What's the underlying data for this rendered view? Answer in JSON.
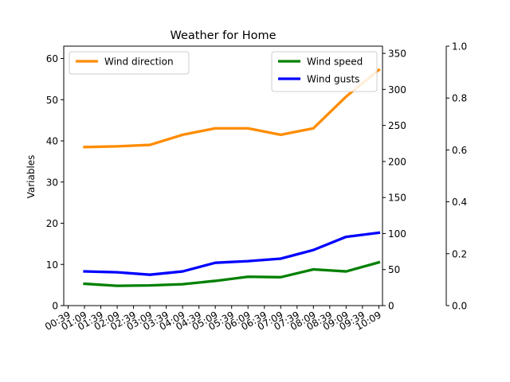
{
  "chart_data": {
    "type": "line",
    "title": "Weather for Home",
    "ylabel_left": "Variables",
    "x": [
      "00:39",
      "01:09",
      "01:39",
      "02:09",
      "02:39",
      "03:09",
      "03:39",
      "04:09",
      "04:39",
      "05:09",
      "05:39",
      "06:09",
      "06:39",
      "07:09",
      "07:39",
      "08:09",
      "08:39",
      "09:09",
      "09:39",
      "10:09"
    ],
    "series": [
      {
        "name": "Wind speed",
        "axis": "left",
        "color": "#008000",
        "x": [
          "01:09",
          "02:09",
          "03:09",
          "04:09",
          "05:09",
          "06:09",
          "07:09",
          "08:09",
          "09:09",
          "10:09"
        ],
        "values": [
          5.3,
          4.8,
          4.9,
          5.2,
          6.0,
          7.0,
          6.9,
          8.8,
          8.3,
          10.5
        ]
      },
      {
        "name": "Wind gusts",
        "axis": "left",
        "color": "#0000ff",
        "x": [
          "01:09",
          "02:09",
          "03:09",
          "04:09",
          "05:09",
          "06:09",
          "07:09",
          "08:09",
          "09:09",
          "10:09"
        ],
        "values": [
          8.3,
          8.1,
          7.5,
          8.3,
          10.4,
          10.8,
          11.4,
          13.5,
          16.7,
          17.7
        ]
      },
      {
        "name": "Wind direction",
        "axis": "right",
        "color": "#ff8c00",
        "x": [
          "01:09",
          "02:09",
          "03:09",
          "04:09",
          "05:09",
          "06:09",
          "07:09",
          "08:09",
          "09:09",
          "10:09"
        ],
        "values": [
          220,
          221,
          223,
          237,
          246,
          246,
          237,
          246,
          290,
          327
        ]
      }
    ],
    "axes": {
      "left": {
        "ylim": [
          0,
          63
        ],
        "ticks": [
          0,
          10,
          20,
          30,
          40,
          50,
          60
        ]
      },
      "right": {
        "ylim": [
          0,
          360
        ],
        "ticks": [
          0,
          50,
          100,
          150,
          200,
          250,
          300,
          350
        ]
      },
      "far_right": {
        "ylim": [
          0,
          1
        ],
        "ticks": [
          "0.0",
          "0.2",
          "0.4",
          "0.6",
          "0.8",
          "1.0"
        ]
      }
    },
    "legends": [
      {
        "placement": "upper-left",
        "entries": [
          "Wind direction"
        ]
      },
      {
        "placement": "upper-right",
        "entries": [
          "Wind speed",
          "Wind gusts"
        ]
      }
    ],
    "grid": false
  }
}
